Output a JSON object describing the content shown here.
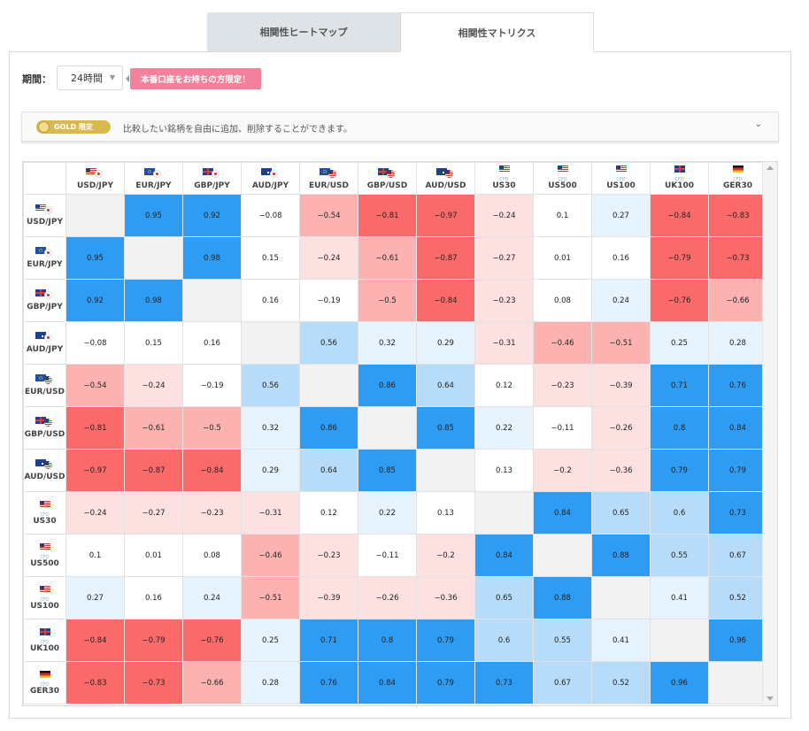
{
  "tabs": [
    {
      "label": "相関性ヒートマップ",
      "active": false
    },
    {
      "label": "相関性マトリクス",
      "active": true
    }
  ],
  "period": {
    "label": "期間：",
    "value": "24時間"
  },
  "badge": {
    "label": "本番口座をお持ちの方限定！"
  },
  "gold": {
    "pill": "GOLD 限定",
    "text": "比較したい銘柄を自由に追加、削除することができます。"
  },
  "colors": {
    "pos_strong": "#2f9cf4",
    "pos_mid": "#b7dcfa",
    "pos_weak": "#e6f3fd",
    "neg_strong": "#fb6a6a",
    "neg_mid": "#fdb2b2",
    "neg_weak": "#fde0e0",
    "diag": "#f2f2f2"
  },
  "symbols": [
    {
      "label": "USD/JPY",
      "flags": [
        "us",
        "jp"
      ],
      "sub": ""
    },
    {
      "label": "EUR/JPY",
      "flags": [
        "eu",
        "jp"
      ],
      "sub": ""
    },
    {
      "label": "GBP/JPY",
      "flags": [
        "uk",
        "jp"
      ],
      "sub": ""
    },
    {
      "label": "AUD/JPY",
      "flags": [
        "au",
        "jp"
      ],
      "sub": ""
    },
    {
      "label": "EUR/USD",
      "flags": [
        "eu",
        "us"
      ],
      "sub": ""
    },
    {
      "label": "GBP/USD",
      "flags": [
        "uk",
        "us"
      ],
      "sub": ""
    },
    {
      "label": "AUD/USD",
      "flags": [
        "au",
        "us"
      ],
      "sub": ""
    },
    {
      "label": "US30",
      "flags": [
        "us"
      ],
      "sub": "CFD"
    },
    {
      "label": "US500",
      "flags": [
        "us"
      ],
      "sub": "CFD"
    },
    {
      "label": "US100",
      "flags": [
        "us"
      ],
      "sub": "CFD"
    },
    {
      "label": "UK100",
      "flags": [
        "uk"
      ],
      "sub": "CFD"
    },
    {
      "label": "GER30",
      "flags": [
        "de"
      ],
      "sub": "CFD"
    }
  ],
  "matrix": [
    [
      "",
      "0.95",
      "0.92",
      "-0.08",
      "-0.54",
      "-0.81",
      "-0.97",
      "-0.24",
      "0.1",
      "0.27",
      "-0.84",
      "-0.83"
    ],
    [
      "0.95",
      "",
      "0.98",
      "0.15",
      "-0.24",
      "-0.61",
      "-0.87",
      "-0.27",
      "0.01",
      "0.16",
      "-0.79",
      "-0.73"
    ],
    [
      "0.92",
      "0.98",
      "",
      "0.16",
      "-0.19",
      "-0.5",
      "-0.84",
      "-0.23",
      "0.08",
      "0.24",
      "-0.76",
      "-0.66"
    ],
    [
      "-0.08",
      "0.15",
      "0.16",
      "",
      "0.56",
      "0.32",
      "0.29",
      "-0.31",
      "-0.46",
      "-0.51",
      "0.25",
      "0.28"
    ],
    [
      "-0.54",
      "-0.24",
      "-0.19",
      "0.56",
      "",
      "0.86",
      "0.64",
      "0.12",
      "-0.23",
      "-0.39",
      "0.71",
      "0.76"
    ],
    [
      "-0.81",
      "-0.61",
      "-0.5",
      "0.32",
      "0.86",
      "",
      "0.85",
      "0.22",
      "-0.11",
      "-0.26",
      "0.8",
      "0.84"
    ],
    [
      "-0.97",
      "-0.87",
      "-0.84",
      "0.29",
      "0.64",
      "0.85",
      "",
      "0.13",
      "-0.2",
      "-0.36",
      "0.79",
      "0.79"
    ],
    [
      "-0.24",
      "-0.27",
      "-0.23",
      "-0.31",
      "0.12",
      "0.22",
      "0.13",
      "",
      "0.84",
      "0.65",
      "0.6",
      "0.73"
    ],
    [
      "0.1",
      "0.01",
      "0.08",
      "-0.46",
      "-0.23",
      "-0.11",
      "-0.2",
      "0.84",
      "",
      "0.88",
      "0.55",
      "0.67"
    ],
    [
      "0.27",
      "0.16",
      "0.24",
      "-0.51",
      "-0.39",
      "-0.26",
      "-0.36",
      "0.65",
      "0.88",
      "",
      "0.41",
      "0.52"
    ],
    [
      "-0.84",
      "-0.79",
      "-0.76",
      "0.25",
      "0.71",
      "0.8",
      "0.79",
      "0.6",
      "0.55",
      "0.41",
      "",
      "0.96"
    ],
    [
      "-0.83",
      "-0.73",
      "-0.66",
      "0.28",
      "0.76",
      "0.84",
      "0.79",
      "0.73",
      "0.67",
      "0.52",
      "0.96",
      ""
    ]
  ]
}
